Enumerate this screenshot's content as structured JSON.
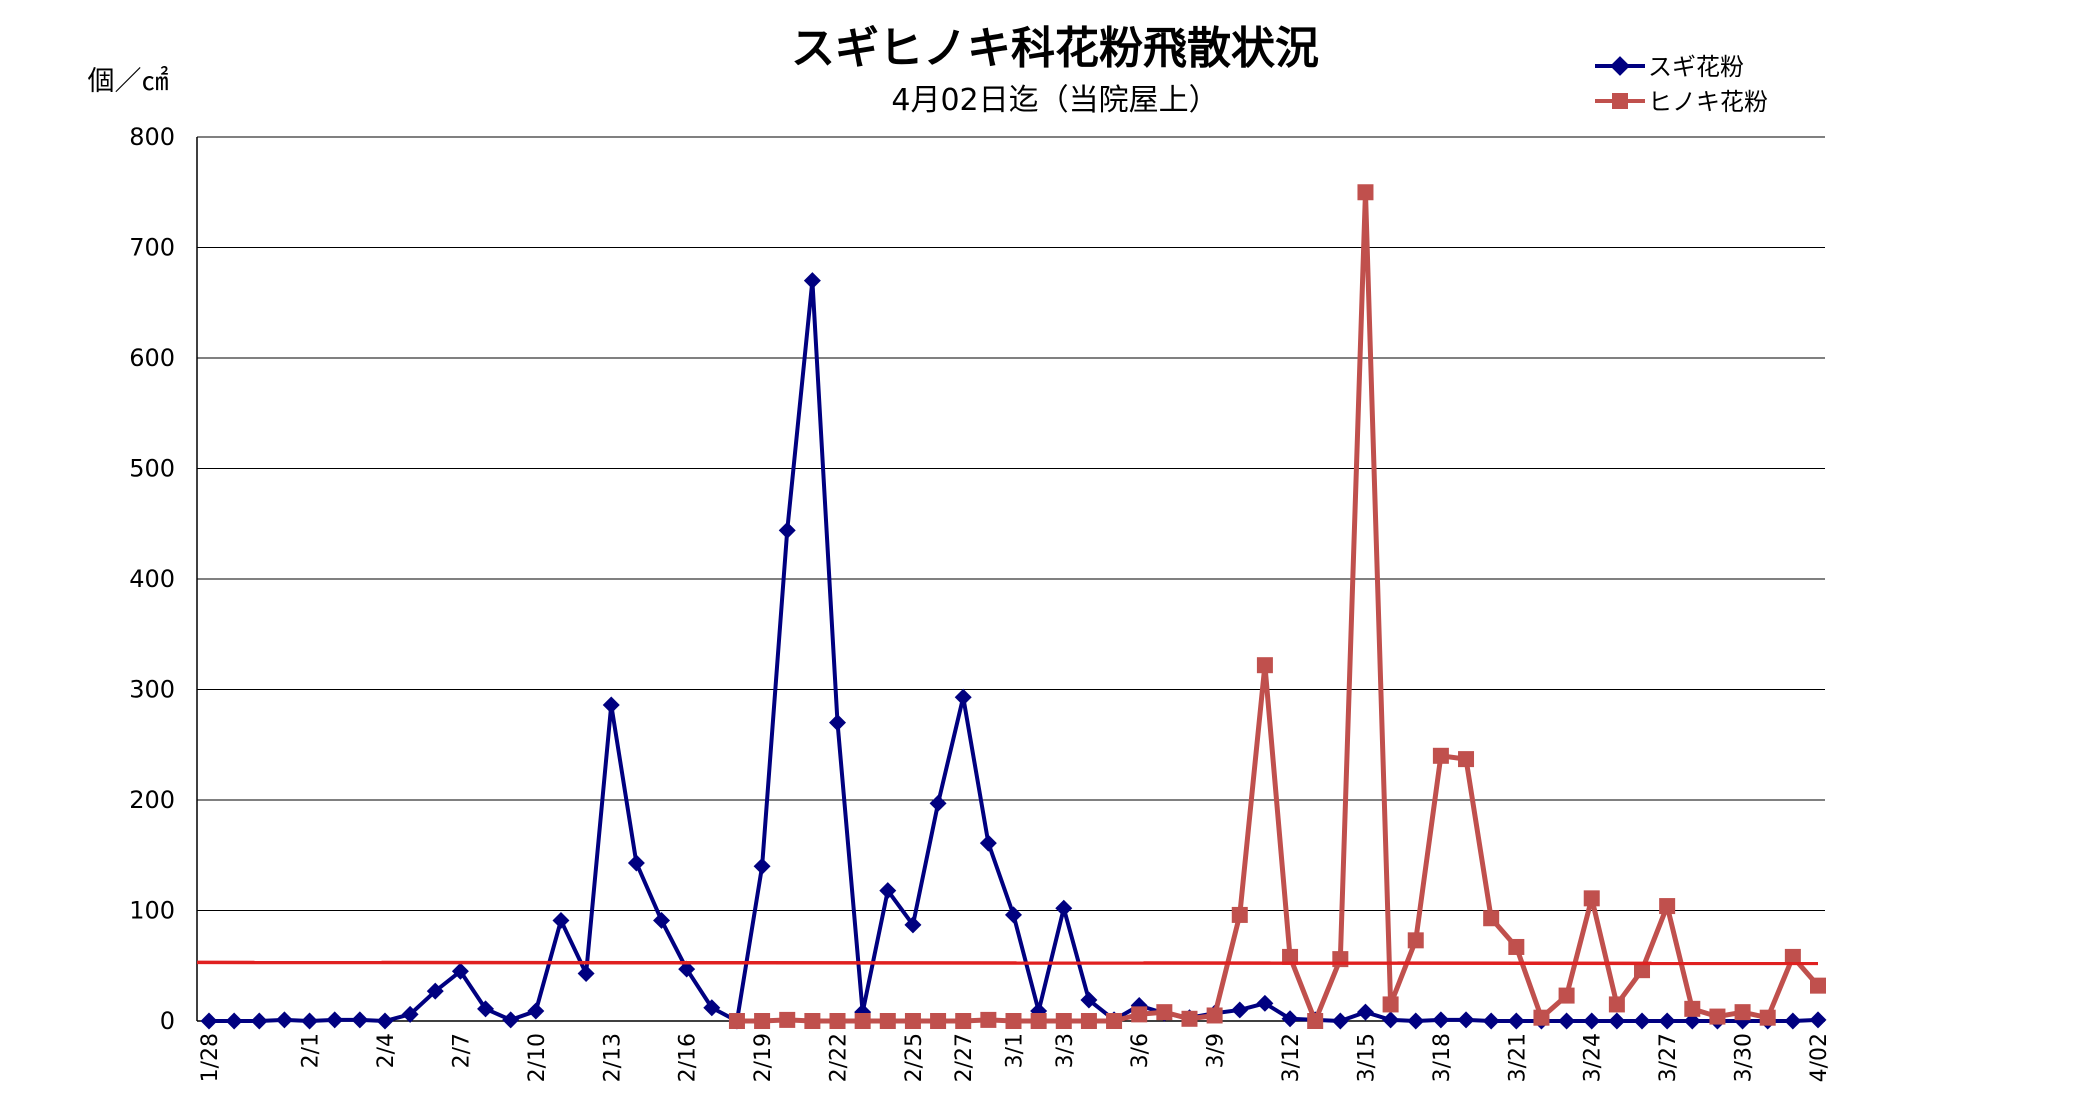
{
  "chart_data": {
    "type": "line",
    "title": "スギヒノキ科花粉飛散状況",
    "subtitle": "4月02日迄（当院屋上）",
    "ylabel": "個／㎠",
    "xlabel": "",
    "ylim": [
      0,
      800
    ],
    "yticks": [
      "0",
      "100",
      "200",
      "300",
      "400",
      "500",
      "600",
      "700",
      "800"
    ],
    "grid": true,
    "legend_position": "top-right",
    "x": [
      "1/28",
      "1/29",
      "1/30",
      "1/31",
      "2/1",
      "2/2",
      "2/3",
      "2/4",
      "2/5",
      "2/6",
      "2/7",
      "2/8",
      "2/9",
      "2/10",
      "2/11",
      "2/12",
      "2/13",
      "2/14",
      "2/15",
      "2/16",
      "2/17",
      "2/18",
      "2/19",
      "2/20",
      "2/21",
      "2/22",
      "2/23",
      "2/24",
      "2/25",
      "2/26",
      "2/27",
      "2/28",
      "3/1",
      "3/2",
      "3/3",
      "3/4",
      "3/5",
      "3/6",
      "3/7",
      "3/8",
      "3/9",
      "3/10",
      "3/11",
      "3/12",
      "3/13",
      "3/14",
      "3/15",
      "3/16",
      "3/17",
      "3/18",
      "3/19",
      "3/20",
      "3/21",
      "3/22",
      "3/23",
      "3/24",
      "3/25",
      "3/26",
      "3/27",
      "3/28",
      "3/29",
      "3/30",
      "3/31",
      "4/01",
      "4/02"
    ],
    "x_tick_labels": [
      "1/28",
      "",
      "",
      "",
      "2/1",
      "",
      "",
      "2/4",
      "",
      "",
      "2/7",
      "",
      "",
      "2/10",
      "",
      "",
      "2/13",
      "",
      "",
      "2/16",
      "",
      "",
      "2/19",
      "",
      "",
      "2/22",
      "",
      "",
      "2/25",
      "",
      "2/27",
      "",
      "3/1",
      "",
      "3/3",
      "",
      "",
      "3/6",
      "",
      "",
      "3/9",
      "",
      "",
      "3/12",
      "",
      "",
      "3/15",
      "",
      "",
      "3/18",
      "",
      "",
      "3/21",
      "",
      "",
      "3/24",
      "",
      "",
      "3/27",
      "",
      "",
      "3/30",
      "",
      "",
      "4/02"
    ],
    "series": [
      {
        "name": "スギ花粉",
        "color": "#000080",
        "marker": "diamond",
        "values": [
          0,
          0,
          0,
          1,
          0,
          1,
          1,
          0,
          6,
          27,
          45,
          11,
          1,
          9,
          91,
          43,
          286,
          143,
          91,
          47,
          12,
          0,
          140,
          444,
          670,
          270,
          8,
          118,
          87,
          197,
          293,
          161,
          96,
          9,
          102,
          19,
          1,
          14,
          7,
          3,
          7,
          10,
          16,
          2,
          1,
          0,
          8,
          1,
          0,
          1,
          1,
          0,
          0,
          0,
          0,
          0,
          0,
          0,
          0,
          0,
          0,
          0,
          0,
          0,
          1
        ]
      },
      {
        "name": "ヒノキ花粉",
        "color": "#C0504D",
        "marker": "square",
        "values": [
          null,
          null,
          null,
          null,
          null,
          null,
          null,
          null,
          null,
          null,
          null,
          null,
          null,
          null,
          null,
          null,
          null,
          null,
          null,
          null,
          null,
          0,
          0,
          1,
          0,
          0,
          0,
          0,
          0,
          0,
          0,
          1,
          0,
          0,
          0,
          0,
          0,
          6,
          8,
          2,
          5,
          96,
          322,
          58,
          0,
          56,
          750,
          15,
          73,
          240,
          237,
          93,
          67,
          3,
          23,
          111,
          15,
          46,
          104,
          11,
          4,
          8,
          3,
          58,
          32
        ]
      }
    ],
    "reference_line": {
      "value": 53,
      "color": "#E02020"
    }
  }
}
